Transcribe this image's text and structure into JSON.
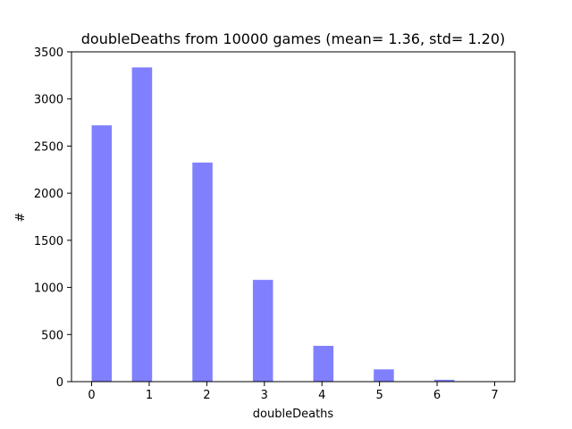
{
  "chart_data": {
    "type": "bar",
    "title": "doubleDeaths from 10000 games (mean= 1.36, std= 1.20)",
    "xlabel": "doubleDeaths",
    "ylabel": "#",
    "xlim": [
      -0.35,
      7.35
    ],
    "ylim": [
      0,
      3500
    ],
    "bar_width": 0.35,
    "bar_color": "#8080ff",
    "x": [
      0.175,
      0.875,
      1.925,
      2.975,
      4.025,
      5.075,
      6.125,
      6.825
    ],
    "values": [
      2720,
      3335,
      2325,
      1080,
      380,
      130,
      20,
      0
    ],
    "xticks": [
      0,
      1,
      2,
      3,
      4,
      5,
      6,
      7
    ],
    "xtick_labels": [
      "0",
      "1",
      "2",
      "3",
      "4",
      "5",
      "6",
      "7"
    ],
    "yticks": [
      0,
      500,
      1000,
      1500,
      2000,
      2500,
      3000,
      3500
    ],
    "ytick_labels": [
      "0",
      "500",
      "1000",
      "1500",
      "2000",
      "2500",
      "3000",
      "3500"
    ],
    "grid": false,
    "legend": "none"
  }
}
